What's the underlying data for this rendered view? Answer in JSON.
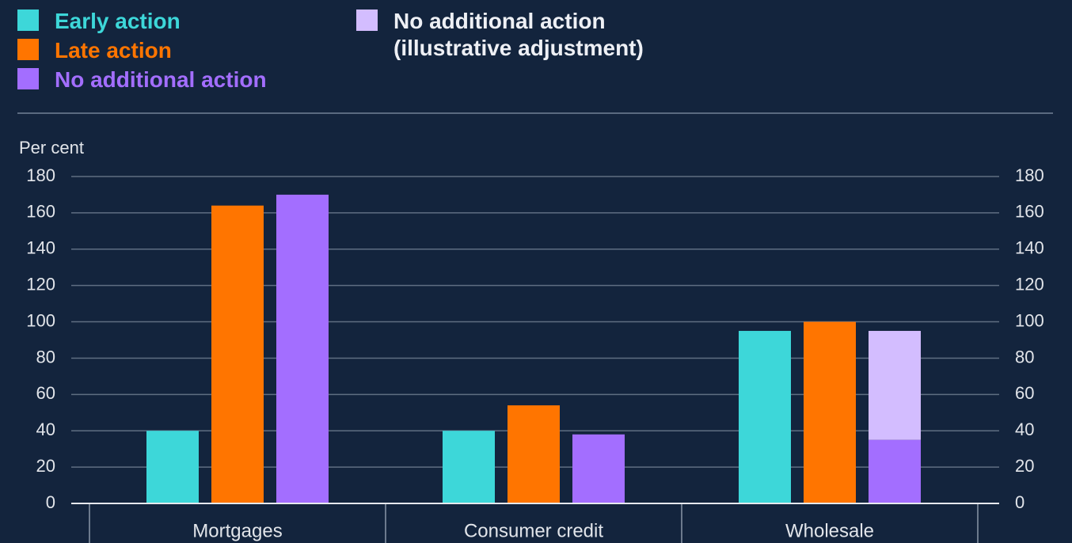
{
  "chart_data": {
    "type": "bar",
    "y_label": "Per cent",
    "categories": [
      "Mortgages",
      "Consumer credit",
      "Wholesale"
    ],
    "series": [
      {
        "name": "Early action",
        "color": "#3dd7d9",
        "values": [
          40,
          40,
          95
        ]
      },
      {
        "name": "Late action",
        "color": "#ff7500",
        "values": [
          164,
          54,
          100
        ]
      },
      {
        "name": "No additional action",
        "color": "#a36eff",
        "values": [
          170,
          38,
          35
        ]
      },
      {
        "name": "No additional action (illustrative adjustment)",
        "color": "#d3bdff",
        "values": [
          null,
          null,
          60
        ],
        "stacked": true
      }
    ],
    "ylim": [
      0,
      180
    ],
    "yticks": [
      0,
      20,
      40,
      60,
      80,
      100,
      120,
      140,
      160,
      180
    ],
    "grid": true
  }
}
